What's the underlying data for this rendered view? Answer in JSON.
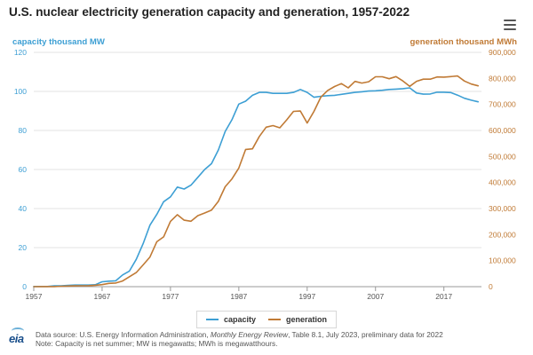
{
  "chart_data": {
    "type": "line",
    "title": "U.S. nuclear electricity generation capacity and generation, 1957-2022",
    "left_axis_title": "capacity thousand MW",
    "right_axis_title": "generation thousand MWh",
    "x_ticks": [
      "1957",
      "1967",
      "1977",
      "1987",
      "1997",
      "2007",
      "2017"
    ],
    "y_left_ticks": [
      "0",
      "20",
      "40",
      "60",
      "80",
      "100",
      "120"
    ],
    "y_right_ticks": [
      "0",
      "100,000",
      "200,000",
      "300,000",
      "400,000",
      "500,000",
      "600,000",
      "700,000",
      "800,000",
      "900,000"
    ],
    "xlim": [
      1957,
      2022.5
    ],
    "ylim_left": [
      0,
      120
    ],
    "ylim_right": [
      0,
      900000
    ],
    "grid": true,
    "legend_position": "bottom-center",
    "x": [
      1957,
      1958,
      1959,
      1960,
      1961,
      1962,
      1963,
      1964,
      1965,
      1966,
      1967,
      1968,
      1969,
      1970,
      1971,
      1972,
      1973,
      1974,
      1975,
      1976,
      1977,
      1978,
      1979,
      1980,
      1981,
      1982,
      1983,
      1984,
      1985,
      1986,
      1987,
      1988,
      1989,
      1990,
      1991,
      1992,
      1993,
      1994,
      1995,
      1996,
      1997,
      1998,
      1999,
      2000,
      2001,
      2002,
      2003,
      2004,
      2005,
      2006,
      2007,
      2008,
      2009,
      2010,
      2011,
      2012,
      2013,
      2014,
      2015,
      2016,
      2017,
      2018,
      2019,
      2020,
      2021,
      2022
    ],
    "series": [
      {
        "name": "capacity",
        "axis": "left",
        "color": "#3d9fd4",
        "values": [
          0.1,
          0.1,
          0.1,
          0.4,
          0.4,
          0.7,
          0.8,
          0.8,
          0.8,
          1.0,
          2.5,
          2.8,
          3.0,
          6.0,
          8.0,
          14.0,
          22.0,
          31.5,
          37.0,
          43.5,
          46.0,
          51.0,
          50.0,
          52.0,
          56.0,
          60.0,
          63.0,
          70.0,
          79.5,
          85.5,
          93.5,
          95.0,
          98.0,
          99.5,
          99.5,
          99.0,
          99.0,
          99.0,
          99.5,
          101.0,
          99.5,
          97.0,
          97.5,
          97.8,
          98.0,
          98.5,
          99.0,
          99.5,
          99.8,
          100.2,
          100.3,
          100.6,
          101.0,
          101.2,
          101.4,
          101.8,
          99.2,
          98.6,
          98.7,
          99.6,
          99.6,
          99.4,
          98.1,
          96.5,
          95.5,
          94.7
        ]
      },
      {
        "name": "generation",
        "axis": "right",
        "color": "#c07a35",
        "values": [
          0,
          200,
          200,
          500,
          1700,
          2300,
          3200,
          3300,
          3700,
          5500,
          7700,
          12500,
          13900,
          21800,
          38100,
          54100,
          83500,
          114000,
          172500,
          191100,
          250900,
          276400,
          255200,
          251100,
          272700,
          282800,
          293700,
          327600,
          383700,
          414000,
          455300,
          527000,
          529400,
          576900,
          612600,
          618800,
          610300,
          640400,
          673400,
          674700,
          628600,
          673700,
          728300,
          753900,
          768800,
          780100,
          763700,
          788500,
          782000,
          787200,
          806400,
          806200,
          798900,
          806970,
          790200,
          769300,
          789000,
          797200,
          797200,
          805700,
          804950,
          807080,
          809410,
          789880,
          778150,
          771540
        ]
      }
    ],
    "legend": [
      {
        "label": "capacity",
        "color": "#3d9fd4"
      },
      {
        "label": "generation",
        "color": "#c07a35"
      }
    ]
  },
  "source": {
    "line1_prefix": "Data source: U.S. Energy Information Administration, ",
    "line1_italic": "Monthly Energy Review",
    "line1_suffix": ", Table 8.1, July 2023, preliminary data for 2022",
    "line2": "Note: Capacity is net summer; MW is megawatts; MWh is megawatthours."
  },
  "logo": "eia",
  "menu_icon": "hamburger-menu-icon"
}
